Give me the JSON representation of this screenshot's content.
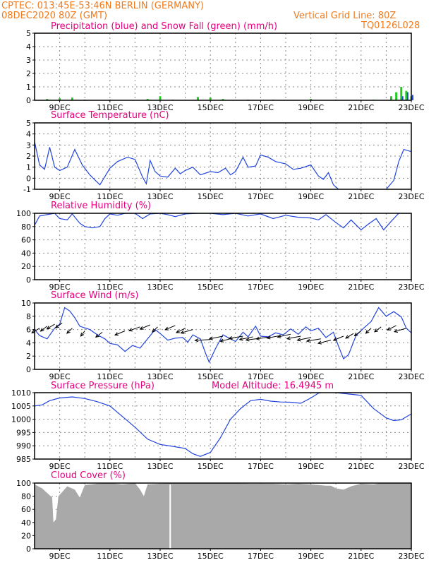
{
  "header": {
    "source_location": "CPTEC:  013:45E-53:46N  BERLIN (GERMANY)",
    "run_time": "08DEC2020 80Z (GMT)",
    "grid_info": "Vertical Grid Line: 80Z",
    "model_code": "TQ0126L028"
  },
  "colors": {
    "header_text": "#f07a1c",
    "title_text": "#e6007e",
    "line": "#2244dd",
    "snow": "#22cc22",
    "rain": "#2244dd",
    "cloud": "#a9a9a9"
  },
  "x_tick_labels": [
    "9DEC",
    "11DEC",
    "13DEC",
    "15DEC",
    "17DEC",
    "19DEC",
    "21DEC",
    "23DEC"
  ],
  "chart_data": [
    {
      "id": "precip",
      "type": "bar",
      "title": "Precipitation (blue) and Snow Fall (green) (mm/h)",
      "ylim": [
        0,
        5
      ],
      "yticks": [
        "0",
        "1",
        "2",
        "3",
        "4",
        "5"
      ],
      "grid": true,
      "x_range_days": [
        8.0,
        23.0
      ],
      "snow_series": [
        [
          8.0,
          0.05
        ],
        [
          8.5,
          0.1
        ],
        [
          9.0,
          0.15
        ],
        [
          9.5,
          0.2
        ],
        [
          10.0,
          0.05
        ],
        [
          11.0,
          0.05
        ],
        [
          12.5,
          0.1
        ],
        [
          13.0,
          0.3
        ],
        [
          13.5,
          0.05
        ],
        [
          14.5,
          0.25
        ],
        [
          15.0,
          0.2
        ],
        [
          15.5,
          0.1
        ],
        [
          16.5,
          0.05
        ],
        [
          17.5,
          0.05
        ],
        [
          19.0,
          0.1
        ],
        [
          20.0,
          0.05
        ],
        [
          21.5,
          0.05
        ],
        [
          22.2,
          0.3
        ],
        [
          22.4,
          0.6
        ],
        [
          22.6,
          1.0
        ],
        [
          22.8,
          0.7
        ],
        [
          23.0,
          0.3
        ]
      ],
      "rain_series": [
        [
          22.6,
          0.3
        ],
        [
          22.8,
          0.6
        ],
        [
          23.0,
          0.4
        ]
      ]
    },
    {
      "id": "temperature",
      "type": "line",
      "title": "Surface Temperature (nC)",
      "ylim": [
        -1,
        5
      ],
      "yticks": [
        "-1",
        "0",
        "1",
        "2",
        "3",
        "4",
        "5"
      ],
      "grid": true,
      "x_range_days": [
        8.0,
        23.0
      ],
      "values": [
        [
          8.0,
          3.3
        ],
        [
          8.2,
          1.2
        ],
        [
          8.4,
          0.8
        ],
        [
          8.6,
          2.8
        ],
        [
          8.8,
          1.0
        ],
        [
          9.0,
          0.7
        ],
        [
          9.3,
          1.0
        ],
        [
          9.6,
          2.6
        ],
        [
          9.9,
          1.2
        ],
        [
          10.2,
          0.3
        ],
        [
          10.6,
          -0.6
        ],
        [
          11.0,
          0.9
        ],
        [
          11.3,
          1.5
        ],
        [
          11.7,
          1.9
        ],
        [
          12.0,
          1.7
        ],
        [
          12.3,
          0.1
        ],
        [
          12.45,
          -0.5
        ],
        [
          12.6,
          1.6
        ],
        [
          12.8,
          0.6
        ],
        [
          13.0,
          0.2
        ],
        [
          13.3,
          0.1
        ],
        [
          13.6,
          0.9
        ],
        [
          13.8,
          0.4
        ],
        [
          14.0,
          0.7
        ],
        [
          14.3,
          1.0
        ],
        [
          14.6,
          0.3
        ],
        [
          15.0,
          0.6
        ],
        [
          15.3,
          0.5
        ],
        [
          15.6,
          0.9
        ],
        [
          15.8,
          0.3
        ],
        [
          16.0,
          0.6
        ],
        [
          16.3,
          1.9
        ],
        [
          16.5,
          1.0
        ],
        [
          16.8,
          1.1
        ],
        [
          17.0,
          2.1
        ],
        [
          17.3,
          1.9
        ],
        [
          17.6,
          1.5
        ],
        [
          18.0,
          1.3
        ],
        [
          18.3,
          0.8
        ],
        [
          18.6,
          0.9
        ],
        [
          19.0,
          1.2
        ],
        [
          19.3,
          0.2
        ],
        [
          19.5,
          -0.1
        ],
        [
          19.7,
          0.5
        ],
        [
          19.9,
          -0.6
        ],
        [
          20.1,
          -1.0
        ]
      ],
      "values2": [
        [
          22.0,
          -1.0
        ],
        [
          22.3,
          -0.2
        ],
        [
          22.5,
          1.5
        ],
        [
          22.7,
          2.6
        ],
        [
          23.0,
          2.4
        ]
      ]
    },
    {
      "id": "humidity",
      "type": "line",
      "title": "Relative Humidity (%)",
      "ylim": [
        0,
        100
      ],
      "yticks": [
        "0",
        "20",
        "40",
        "60",
        "80",
        "100"
      ],
      "grid": true,
      "x_range_days": [
        8.0,
        23.0
      ],
      "values": [
        [
          8.0,
          82
        ],
        [
          8.2,
          96
        ],
        [
          8.5,
          98
        ],
        [
          8.8,
          100
        ],
        [
          9.0,
          92
        ],
        [
          9.3,
          90
        ],
        [
          9.5,
          99
        ],
        [
          9.8,
          85
        ],
        [
          10.0,
          80
        ],
        [
          10.3,
          78
        ],
        [
          10.6,
          80
        ],
        [
          10.8,
          92
        ],
        [
          11.0,
          99
        ],
        [
          11.3,
          97
        ],
        [
          11.6,
          100
        ],
        [
          12.0,
          100
        ],
        [
          12.3,
          92
        ],
        [
          12.6,
          99
        ],
        [
          13.0,
          100
        ],
        [
          13.3,
          98
        ],
        [
          13.6,
          95
        ],
        [
          14.0,
          99
        ],
        [
          14.5,
          100
        ],
        [
          15.0,
          100
        ],
        [
          15.5,
          98
        ],
        [
          16.0,
          100
        ],
        [
          16.5,
          96
        ],
        [
          17.0,
          99
        ],
        [
          17.5,
          92
        ],
        [
          18.0,
          97
        ],
        [
          18.5,
          94
        ],
        [
          19.0,
          93
        ],
        [
          19.3,
          90
        ],
        [
          19.6,
          98
        ],
        [
          20.0,
          86
        ],
        [
          20.3,
          78
        ],
        [
          20.6,
          90
        ],
        [
          21.0,
          75
        ],
        [
          21.3,
          84
        ],
        [
          21.6,
          92
        ],
        [
          21.9,
          75
        ],
        [
          22.2,
          88
        ],
        [
          22.5,
          100
        ],
        [
          23.0,
          100
        ]
      ]
    },
    {
      "id": "wind",
      "type": "line",
      "title": "Surface Wind (m/s)",
      "ylim": [
        0,
        10
      ],
      "yticks": [
        "0",
        "2",
        "4",
        "6",
        "8",
        "10"
      ],
      "grid": true,
      "x_range_days": [
        8.0,
        23.0
      ],
      "values": [
        [
          8.0,
          6.0
        ],
        [
          8.2,
          5.1
        ],
        [
          8.5,
          4.6
        ],
        [
          8.8,
          6.2
        ],
        [
          9.0,
          6.8
        ],
        [
          9.2,
          9.3
        ],
        [
          9.4,
          8.8
        ],
        [
          9.6,
          7.8
        ],
        [
          9.8,
          6.5
        ],
        [
          10.2,
          6.0
        ],
        [
          10.5,
          5.2
        ],
        [
          10.8,
          4.6
        ],
        [
          11.0,
          3.9
        ],
        [
          11.3,
          3.7
        ],
        [
          11.6,
          2.7
        ],
        [
          11.9,
          3.6
        ],
        [
          12.2,
          3.2
        ],
        [
          12.5,
          4.6
        ],
        [
          12.8,
          6.0
        ],
        [
          13.0,
          5.4
        ],
        [
          13.3,
          4.4
        ],
        [
          13.6,
          4.7
        ],
        [
          13.9,
          4.8
        ],
        [
          14.1,
          4.1
        ],
        [
          14.3,
          5.2
        ],
        [
          14.6,
          4.6
        ],
        [
          14.8,
          2.5
        ],
        [
          14.95,
          1.1
        ],
        [
          15.2,
          3.1
        ],
        [
          15.5,
          5.2
        ],
        [
          15.8,
          4.6
        ],
        [
          16.0,
          4.2
        ],
        [
          16.3,
          5.6
        ],
        [
          16.5,
          4.9
        ],
        [
          16.8,
          6.5
        ],
        [
          17.0,
          5.0
        ],
        [
          17.3,
          4.9
        ],
        [
          17.6,
          5.5
        ],
        [
          17.9,
          5.2
        ],
        [
          18.2,
          6.1
        ],
        [
          18.5,
          5.3
        ],
        [
          18.8,
          6.4
        ],
        [
          19.0,
          5.8
        ],
        [
          19.3,
          6.2
        ],
        [
          19.6,
          4.8
        ],
        [
          19.9,
          5.6
        ],
        [
          20.1,
          3.5
        ],
        [
          20.3,
          1.6
        ],
        [
          20.5,
          2.2
        ],
        [
          20.8,
          5.1
        ],
        [
          21.1,
          6.2
        ],
        [
          21.4,
          7.2
        ],
        [
          21.7,
          9.3
        ],
        [
          22.0,
          8.0
        ],
        [
          22.3,
          8.7
        ],
        [
          22.6,
          7.9
        ],
        [
          22.8,
          6.2
        ],
        [
          23.0,
          5.5
        ]
      ],
      "arrows": [
        [
          8.2,
          6.2,
          -120
        ],
        [
          8.5,
          6.5,
          -115
        ],
        [
          8.8,
          6.8,
          -120
        ],
        [
          9.1,
          7.0,
          -115
        ],
        [
          9.5,
          6.2,
          -110
        ],
        [
          10.0,
          5.8,
          -105
        ],
        [
          10.7,
          5.6,
          -115
        ],
        [
          11.6,
          5.8,
          -130
        ],
        [
          12.2,
          6.4,
          -135
        ],
        [
          12.6,
          6.7,
          -130
        ],
        [
          12.9,
          6.4,
          -110
        ],
        [
          13.6,
          6.6,
          -130
        ],
        [
          14.0,
          6.2,
          -125
        ],
        [
          14.3,
          6.0,
          -140
        ],
        [
          15.0,
          4.5,
          -170
        ],
        [
          15.5,
          5.0,
          -150
        ],
        [
          15.9,
          4.7,
          -145
        ],
        [
          16.3,
          5.0,
          -155
        ],
        [
          16.7,
          4.9,
          -150
        ],
        [
          17.0,
          4.7,
          -160
        ],
        [
          17.4,
          4.9,
          -158
        ],
        [
          17.8,
          5.1,
          -152
        ],
        [
          18.2,
          5.3,
          -148
        ],
        [
          18.6,
          5.0,
          -152
        ],
        [
          19.0,
          4.8,
          -150
        ],
        [
          19.4,
          4.6,
          -155
        ],
        [
          19.8,
          4.4,
          -145
        ],
        [
          20.3,
          5.0,
          -130
        ],
        [
          20.7,
          5.4,
          -120
        ],
        [
          21.0,
          5.8,
          -115
        ],
        [
          21.4,
          6.2,
          -110
        ],
        [
          21.8,
          6.4,
          -115
        ],
        [
          22.4,
          6.6,
          -125
        ],
        [
          22.8,
          6.2,
          -140
        ]
      ]
    },
    {
      "id": "pressure",
      "type": "line",
      "title": "Surface Pressure (hPa)",
      "annotation": "Model Altitude: 16.4945 m",
      "ylim": [
        985,
        1010
      ],
      "yticks": [
        "985",
        "990",
        "995",
        "1000",
        "1005",
        "1010"
      ],
      "grid": true,
      "x_range_days": [
        8.0,
        23.0
      ],
      "values": [
        [
          8.0,
          1005.0
        ],
        [
          8.3,
          1005.4
        ],
        [
          8.6,
          1007.0
        ],
        [
          9.0,
          1008.0
        ],
        [
          9.5,
          1008.4
        ],
        [
          10.0,
          1007.8
        ],
        [
          10.5,
          1006.6
        ],
        [
          11.0,
          1005.0
        ],
        [
          11.5,
          1001.0
        ],
        [
          12.0,
          997.0
        ],
        [
          12.5,
          992.5
        ],
        [
          13.0,
          990.5
        ],
        [
          13.5,
          989.8
        ],
        [
          14.0,
          989.0
        ],
        [
          14.3,
          987.0
        ],
        [
          14.6,
          986.0
        ],
        [
          15.0,
          987.5
        ],
        [
          15.4,
          993.0
        ],
        [
          15.8,
          1000.0
        ],
        [
          16.2,
          1004.0
        ],
        [
          16.6,
          1007.0
        ],
        [
          17.0,
          1007.5
        ],
        [
          17.4,
          1006.8
        ],
        [
          17.8,
          1006.5
        ],
        [
          18.2,
          1006.4
        ],
        [
          18.6,
          1006.0
        ],
        [
          19.0,
          1008.0
        ],
        [
          19.3,
          1009.8
        ],
        [
          19.6,
          1010.5
        ],
        [
          20.0,
          1010.0
        ],
        [
          20.5,
          1009.5
        ],
        [
          21.0,
          1009.0
        ],
        [
          21.5,
          1004.0
        ],
        [
          22.0,
          1000.5
        ],
        [
          22.3,
          999.5
        ],
        [
          22.6,
          999.8
        ],
        [
          23.0,
          1002.0
        ]
      ]
    },
    {
      "id": "cloud",
      "type": "area",
      "title": "Cloud Cover (%)",
      "ylim": [
        0,
        100
      ],
      "yticks": [
        "0",
        "20",
        "40",
        "60",
        "80",
        "100"
      ],
      "grid": true,
      "x_range_days": [
        8.0,
        23.0
      ],
      "values": [
        [
          8.0,
          98
        ],
        [
          8.3,
          92
        ],
        [
          8.5,
          85
        ],
        [
          8.7,
          78
        ],
        [
          8.75,
          40
        ],
        [
          8.85,
          45
        ],
        [
          8.95,
          80
        ],
        [
          9.3,
          95
        ],
        [
          9.6,
          90
        ],
        [
          9.8,
          78
        ],
        [
          10.0,
          97
        ],
        [
          10.5,
          99
        ],
        [
          11.0,
          100
        ],
        [
          11.5,
          98
        ],
        [
          12.0,
          100
        ],
        [
          12.2,
          90
        ],
        [
          12.35,
          80
        ],
        [
          12.5,
          98
        ],
        [
          13.0,
          99
        ],
        [
          13.5,
          100
        ],
        [
          14.5,
          100
        ],
        [
          15.5,
          100
        ],
        [
          16.5,
          99
        ],
        [
          17.5,
          99
        ],
        [
          18.0,
          98
        ],
        [
          18.5,
          99
        ],
        [
          19.0,
          98
        ],
        [
          19.3,
          97
        ],
        [
          19.6,
          96
        ],
        [
          19.8,
          96
        ],
        [
          20.0,
          92
        ],
        [
          20.3,
          90
        ],
        [
          20.6,
          95
        ],
        [
          21.0,
          99
        ],
        [
          21.5,
          98
        ],
        [
          21.8,
          100
        ],
        [
          22.3,
          100
        ],
        [
          23.0,
          100
        ]
      ],
      "gap_day": 13.4
    }
  ]
}
